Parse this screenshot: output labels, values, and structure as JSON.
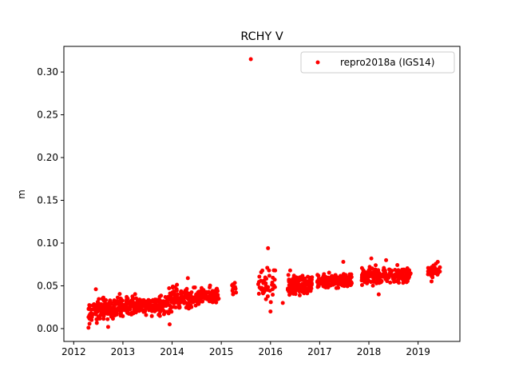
{
  "chart_data": {
    "type": "scatter",
    "title": "RCHY V",
    "xlabel": "",
    "ylabel": "m",
    "xlim": [
      2011.8,
      2019.85
    ],
    "ylim": [
      -0.015,
      0.33
    ],
    "x_ticks": [
      2012,
      2013,
      2014,
      2015,
      2016,
      2017,
      2018,
      2019
    ],
    "y_ticks": [
      0.0,
      0.05,
      0.1,
      0.15,
      0.2,
      0.25,
      0.3
    ],
    "y_tick_labels": [
      "0.00",
      "0.05",
      "0.10",
      "0.15",
      "0.20",
      "0.25",
      "0.30"
    ],
    "grid": false,
    "legend_position": "top-right",
    "series": [
      {
        "name": "repro2018a (IGS14)",
        "color": "#ff0000",
        "marker": "circle",
        "segments": [
          {
            "x_start": 2012.3,
            "x_end": 2012.95,
            "y_start": 0.018,
            "y_end": 0.027,
            "spread": 0.007,
            "count": 160
          },
          {
            "x_start": 2012.95,
            "x_end": 2013.8,
            "y_start": 0.026,
            "y_end": 0.028,
            "spread": 0.006,
            "count": 200
          },
          {
            "x_start": 2013.8,
            "x_end": 2014.1,
            "y_start": 0.025,
            "y_end": 0.04,
            "spread": 0.008,
            "count": 80
          },
          {
            "x_start": 2014.1,
            "x_end": 2014.95,
            "y_start": 0.032,
            "y_end": 0.04,
            "spread": 0.006,
            "count": 200
          },
          {
            "x_start": 2015.2,
            "x_end": 2015.3,
            "y_start": 0.045,
            "y_end": 0.048,
            "spread": 0.005,
            "count": 12
          },
          {
            "x_start": 2015.75,
            "x_end": 2016.1,
            "y_start": 0.048,
            "y_end": 0.052,
            "spread": 0.01,
            "count": 45
          },
          {
            "x_start": 2016.35,
            "x_end": 2016.85,
            "y_start": 0.05,
            "y_end": 0.052,
            "spread": 0.006,
            "count": 140
          },
          {
            "x_start": 2016.95,
            "x_end": 2017.65,
            "y_start": 0.055,
            "y_end": 0.057,
            "spread": 0.005,
            "count": 170
          },
          {
            "x_start": 2017.85,
            "x_end": 2018.85,
            "y_start": 0.061,
            "y_end": 0.063,
            "spread": 0.005,
            "count": 230
          },
          {
            "x_start": 2019.2,
            "x_end": 2019.45,
            "y_start": 0.065,
            "y_end": 0.068,
            "spread": 0.005,
            "count": 50
          }
        ],
        "outliers": [
          {
            "x": 2015.6,
            "y": 0.315
          },
          {
            "x": 2015.95,
            "y": 0.094
          },
          {
            "x": 2016.0,
            "y": 0.02
          },
          {
            "x": 2012.45,
            "y": 0.046
          },
          {
            "x": 2014.32,
            "y": 0.059
          },
          {
            "x": 2016.4,
            "y": 0.068
          },
          {
            "x": 2017.48,
            "y": 0.078
          },
          {
            "x": 2018.05,
            "y": 0.082
          },
          {
            "x": 2018.35,
            "y": 0.08
          },
          {
            "x": 2019.4,
            "y": 0.078
          },
          {
            "x": 2012.3,
            "y": 0.001
          },
          {
            "x": 2012.7,
            "y": 0.002
          },
          {
            "x": 2013.95,
            "y": 0.005
          },
          {
            "x": 2016.25,
            "y": 0.03
          },
          {
            "x": 2018.2,
            "y": 0.04
          }
        ]
      }
    ]
  }
}
